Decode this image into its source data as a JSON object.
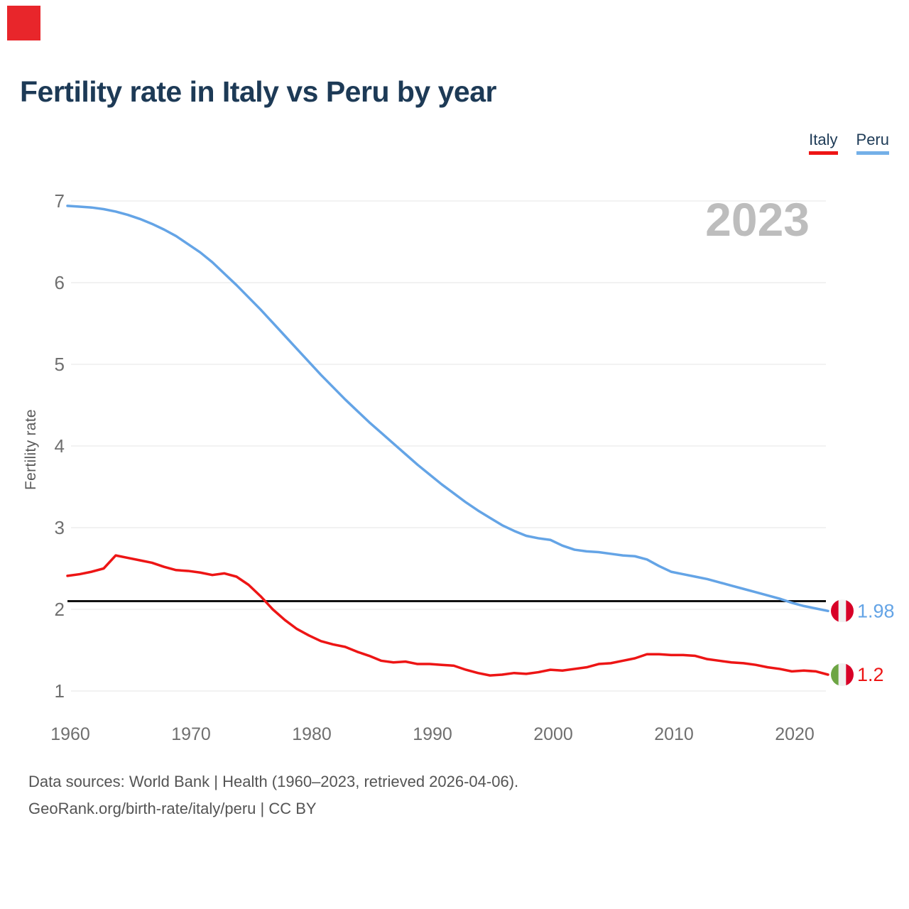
{
  "logo": {
    "color": "#e8262b"
  },
  "header": {
    "title": "Fertility rate in Italy vs Peru by year"
  },
  "legend": {
    "items": [
      {
        "label": "Italy",
        "color": "#ee1414"
      },
      {
        "label": "Peru",
        "color": "#74b0e8"
      }
    ]
  },
  "watermark": "2023",
  "axes": {
    "y_title": "Fertility rate"
  },
  "end_labels": [
    {
      "series": "Peru",
      "value": "1.98",
      "text_color": "#64a4e6",
      "flag_stripes": [
        "#D80027",
        "#F0F0F0",
        "#D80027"
      ]
    },
    {
      "series": "Italy",
      "value": "1.2",
      "text_color": "#ed1515",
      "flag_stripes": [
        "#6DA544",
        "#F0F0F0",
        "#D80027"
      ]
    }
  ],
  "footer": {
    "line1": "Data sources: World Bank | Health (1960–2023, retrieved 2026-04-06).",
    "line2": "GeoRank.org/birth-rate/italy/peru | CC BY"
  },
  "chart_data": {
    "type": "line",
    "title": "Fertility rate in Italy vs Peru by year",
    "xlabel": "",
    "ylabel": "Fertility rate",
    "xlim": [
      1960,
      2023
    ],
    "ylim": [
      1,
      7
    ],
    "yticks": [
      1,
      2,
      3,
      4,
      5,
      6,
      7
    ],
    "xticks": [
      1960,
      1970,
      1980,
      1990,
      2000,
      2010,
      2020
    ],
    "grid": "horizontal",
    "legend_position": "top-right",
    "watermark": "2023",
    "reference_line": {
      "value": 2.1,
      "color": "#111111"
    },
    "x": [
      1960,
      1961,
      1962,
      1963,
      1964,
      1965,
      1966,
      1967,
      1968,
      1969,
      1970,
      1971,
      1972,
      1973,
      1974,
      1975,
      1976,
      1977,
      1978,
      1979,
      1980,
      1981,
      1982,
      1983,
      1984,
      1985,
      1986,
      1987,
      1988,
      1989,
      1990,
      1991,
      1992,
      1993,
      1994,
      1995,
      1996,
      1997,
      1998,
      1999,
      2000,
      2001,
      2002,
      2003,
      2004,
      2005,
      2006,
      2007,
      2008,
      2009,
      2010,
      2011,
      2012,
      2013,
      2014,
      2015,
      2016,
      2017,
      2018,
      2019,
      2020,
      2021,
      2022,
      2023
    ],
    "series": [
      {
        "name": "Italy",
        "color": "#ed1515",
        "values": [
          2.41,
          2.43,
          2.46,
          2.5,
          2.66,
          2.63,
          2.6,
          2.57,
          2.52,
          2.48,
          2.47,
          2.45,
          2.42,
          2.44,
          2.4,
          2.3,
          2.16,
          2.0,
          1.87,
          1.76,
          1.68,
          1.61,
          1.57,
          1.54,
          1.48,
          1.43,
          1.37,
          1.35,
          1.36,
          1.33,
          1.33,
          1.32,
          1.31,
          1.26,
          1.22,
          1.19,
          1.2,
          1.22,
          1.21,
          1.23,
          1.26,
          1.25,
          1.27,
          1.29,
          1.33,
          1.34,
          1.37,
          1.4,
          1.45,
          1.45,
          1.44,
          1.44,
          1.43,
          1.39,
          1.37,
          1.35,
          1.34,
          1.32,
          1.29,
          1.27,
          1.24,
          1.25,
          1.24,
          1.2
        ]
      },
      {
        "name": "Peru",
        "color": "#64a4e6",
        "values": [
          6.94,
          6.93,
          6.92,
          6.9,
          6.87,
          6.83,
          6.78,
          6.72,
          6.65,
          6.57,
          6.47,
          6.37,
          6.25,
          6.11,
          5.97,
          5.82,
          5.67,
          5.51,
          5.35,
          5.19,
          5.03,
          4.87,
          4.72,
          4.57,
          4.43,
          4.29,
          4.16,
          4.03,
          3.9,
          3.77,
          3.65,
          3.53,
          3.42,
          3.31,
          3.21,
          3.12,
          3.03,
          2.96,
          2.9,
          2.87,
          2.85,
          2.78,
          2.73,
          2.71,
          2.7,
          2.68,
          2.66,
          2.65,
          2.61,
          2.53,
          2.46,
          2.43,
          2.4,
          2.37,
          2.33,
          2.29,
          2.25,
          2.21,
          2.17,
          2.13,
          2.08,
          2.04,
          2.01,
          1.98
        ]
      }
    ]
  }
}
